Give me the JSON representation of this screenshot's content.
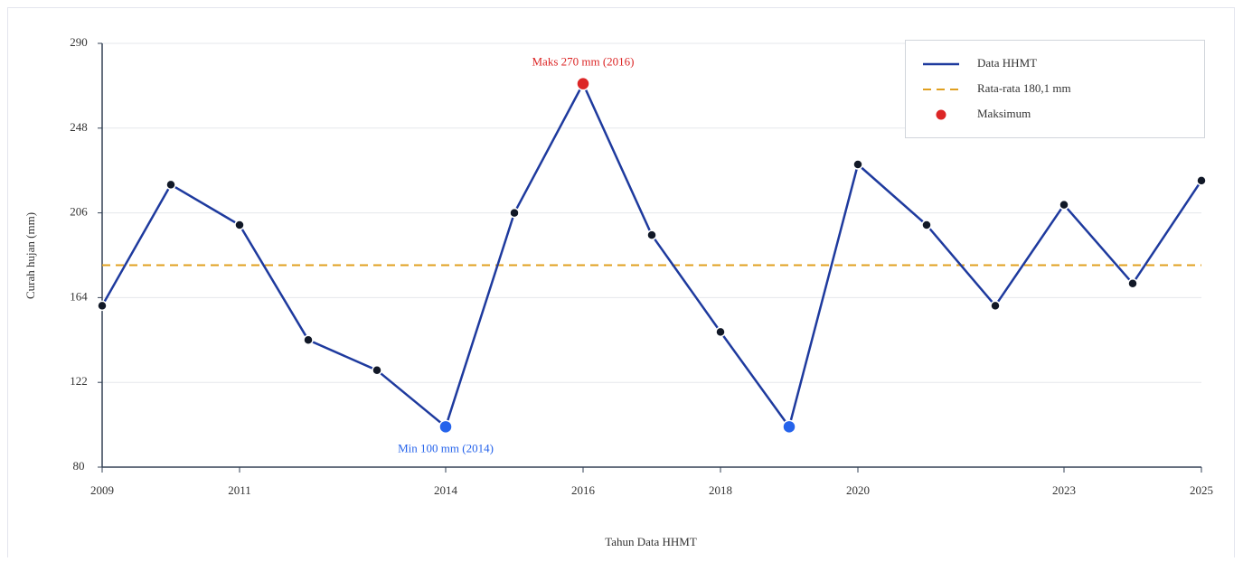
{
  "chart_data": {
    "type": "line",
    "x_label": "Tahun Data HHMT",
    "y_label": "Curah hujan (mm)",
    "x": [
      2009,
      2010,
      2011,
      2012,
      2013,
      2014,
      2015,
      2016,
      2017,
      2018,
      2019,
      2020,
      2021,
      2022,
      2023,
      2024,
      2025
    ],
    "series": [
      {
        "name": "Data HHMT",
        "color": "#1e3a9e",
        "point_color": "#111827",
        "values": [
          160,
          220,
          200,
          143,
          128,
          100,
          206,
          270,
          195,
          147,
          100,
          230,
          200,
          160,
          210,
          171,
          222
        ]
      }
    ],
    "mean_line": {
      "name": "Rata-rata 180,1 mm",
      "value": 180.1,
      "color": "#e0a020"
    },
    "max_marker": {
      "name": "Maksimum",
      "color": "#dc2626",
      "annotation": "Maks 270 mm (2016)"
    },
    "min_marker": {
      "color": "#2563eb",
      "annotation": "Min 100 mm (2014)"
    },
    "xlim": [
      2009,
      2025
    ],
    "xticks": [
      2009,
      2011,
      2014,
      2016,
      2018,
      2020,
      2023,
      2025
    ],
    "ylim": [
      80,
      290
    ],
    "yticks": [
      80,
      122,
      164,
      206,
      248,
      290
    ],
    "grid": true,
    "legend": "top-right"
  }
}
